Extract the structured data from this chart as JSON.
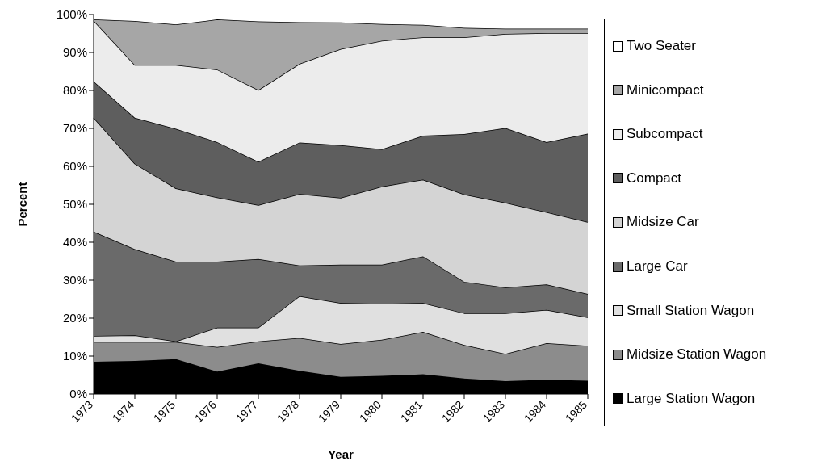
{
  "chart_data": {
    "type": "area",
    "stacked": true,
    "xlabel": "Year",
    "ylabel": "Percent",
    "categories": [
      "1973",
      "1974",
      "1975",
      "1976",
      "1977",
      "1978",
      "1979",
      "1980",
      "1981",
      "1982",
      "1983",
      "1984",
      "1985"
    ],
    "ylim": [
      0,
      100
    ],
    "yticks": [
      {
        "value": 0,
        "label": "0%"
      },
      {
        "value": 10,
        "label": "10%"
      },
      {
        "value": 20,
        "label": "20%"
      },
      {
        "value": 30,
        "label": "30%"
      },
      {
        "value": 40,
        "label": "40%"
      },
      {
        "value": 50,
        "label": "50%"
      },
      {
        "value": 60,
        "label": "60%"
      },
      {
        "value": 70,
        "label": "70%"
      },
      {
        "value": 80,
        "label": "80%"
      },
      {
        "value": 90,
        "label": "90%"
      },
      {
        "value": 100,
        "label": "100%"
      }
    ],
    "grid": false,
    "legend": "right",
    "series": [
      {
        "name": "Large Station Wagon",
        "color": "#000000",
        "values": [
          8.5,
          8.7,
          9.2,
          5.9,
          8.1,
          6.1,
          4.5,
          4.8,
          5.2,
          4.1,
          3.4,
          3.8,
          3.5
        ]
      },
      {
        "name": "Midsize Station Wagon",
        "color": "#8c8c8c",
        "values": [
          5.2,
          5.0,
          4.5,
          6.5,
          5.8,
          8.7,
          8.7,
          9.5,
          11.2,
          8.8,
          7.2,
          9.6,
          9.2
        ]
      },
      {
        "name": "Small Station Wagon",
        "color": "#e0e0e0",
        "values": [
          1.6,
          1.8,
          0.2,
          5.1,
          3.6,
          11.0,
          10.8,
          9.5,
          7.6,
          8.4,
          10.7,
          8.8,
          7.5
        ]
      },
      {
        "name": "Large Car",
        "color": "#6a6a6a",
        "values": [
          27.5,
          22.7,
          21.0,
          17.4,
          18.1,
          8.1,
          10.1,
          10.3,
          12.3,
          8.3,
          6.8,
          6.7,
          6.2
        ]
      },
      {
        "name": "Midsize Car",
        "color": "#d4d4d4",
        "values": [
          30.0,
          22.5,
          19.3,
          16.9,
          14.2,
          18.8,
          17.6,
          20.6,
          20.2,
          23.0,
          22.3,
          19.0,
          18.9
        ]
      },
      {
        "name": "Compact",
        "color": "#5e5e5e",
        "values": [
          9.6,
          12.1,
          15.7,
          14.6,
          11.4,
          13.6,
          13.9,
          9.8,
          11.6,
          15.9,
          19.7,
          18.5,
          23.3
        ]
      },
      {
        "name": "Subcompact",
        "color": "#ececec",
        "values": [
          16.0,
          13.9,
          16.8,
          19.1,
          18.9,
          20.7,
          25.3,
          28.6,
          25.9,
          25.5,
          24.8,
          28.7,
          26.5
        ]
      },
      {
        "name": "Minicompact",
        "color": "#a6a6a6",
        "values": [
          0.3,
          11.6,
          10.7,
          13.2,
          18.1,
          11.0,
          7.0,
          4.4,
          3.3,
          2.5,
          1.4,
          1.2,
          1.2
        ]
      },
      {
        "name": "Two Seater",
        "color": "#ffffff",
        "values": [
          1.3,
          1.7,
          2.6,
          1.3,
          1.8,
          2.0,
          2.1,
          2.5,
          2.7,
          3.5,
          3.7,
          3.7,
          3.7
        ]
      }
    ]
  }
}
